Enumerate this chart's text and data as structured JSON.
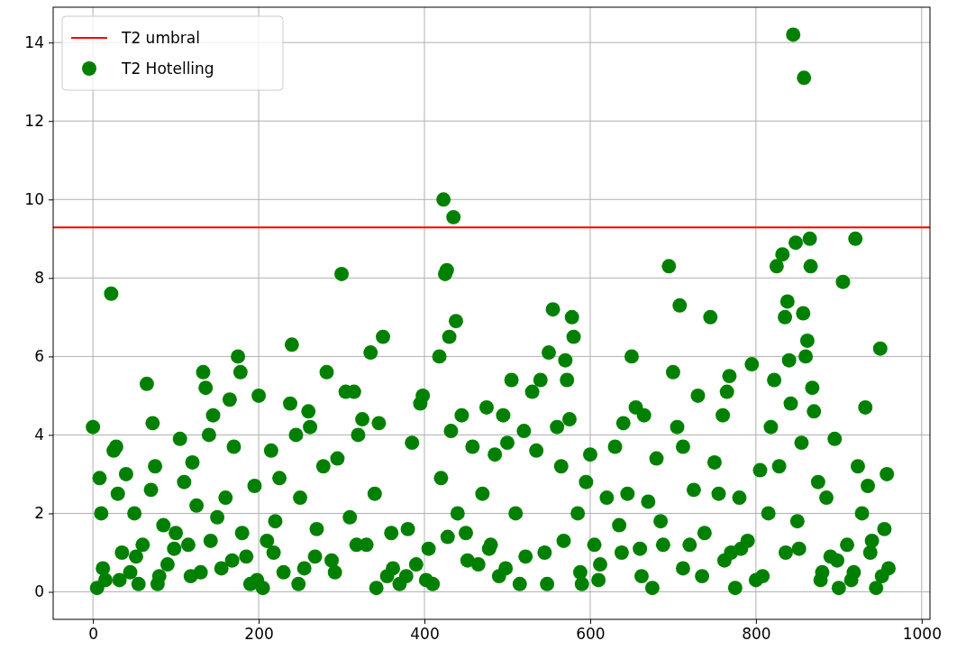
{
  "chart_data": {
    "type": "scatter",
    "xlim": [
      -48,
      1010
    ],
    "ylim": [
      -0.7,
      14.9
    ],
    "xticks": [
      0,
      200,
      400,
      600,
      800,
      1000
    ],
    "yticks": [
      0,
      2,
      4,
      6,
      8,
      10,
      12,
      14
    ],
    "grid": true,
    "legend": "top left",
    "series": [
      {
        "name": "T2 umbral",
        "type": "line",
        "color": "#ff0000",
        "x": [
          -48,
          1010
        ],
        "values": [
          9.29,
          9.29
        ]
      },
      {
        "name": "T2 Hotelling",
        "marker": "circle",
        "color": "#008000",
        "x": [
          0,
          5,
          8,
          10,
          15,
          22,
          25,
          28,
          30,
          35,
          40,
          45,
          50,
          55,
          60,
          65,
          70,
          72,
          75,
          80,
          85,
          90,
          100,
          105,
          110,
          115,
          120,
          125,
          130,
          133,
          136,
          140,
          145,
          150,
          155,
          160,
          165,
          170,
          175,
          178,
          180,
          185,
          190,
          195,
          200,
          205,
          210,
          215,
          220,
          225,
          230,
          238,
          240,
          245,
          250,
          255,
          260,
          262,
          270,
          278,
          282,
          288,
          295,
          300,
          305,
          310,
          315,
          320,
          325,
          330,
          335,
          340,
          345,
          350,
          355,
          360,
          370,
          380,
          385,
          390,
          395,
          398,
          405,
          410,
          418,
          420,
          423,
          425,
          427,
          430,
          432,
          435,
          438,
          440,
          445,
          450,
          458,
          465,
          470,
          475,
          480,
          485,
          490,
          495,
          500,
          505,
          510,
          515,
          520,
          530,
          535,
          540,
          545,
          550,
          555,
          560,
          565,
          570,
          572,
          575,
          578,
          580,
          585,
          590,
          595,
          600,
          605,
          610,
          620,
          630,
          635,
          640,
          645,
          650,
          655,
          660,
          665,
          670,
          675,
          680,
          685,
          695,
          700,
          705,
          708,
          712,
          720,
          725,
          730,
          735,
          745,
          750,
          755,
          760,
          765,
          768,
          770,
          775,
          780,
          790,
          795,
          800,
          805,
          815,
          818,
          822,
          825,
          828,
          832,
          835,
          838,
          840,
          842,
          845,
          848,
          850,
          852,
          855,
          857,
          858,
          860,
          862,
          865,
          866,
          868,
          870,
          875,
          880,
          885,
          890,
          895,
          900,
          905,
          910,
          915,
          920,
          923,
          928,
          932,
          935,
          940,
          945,
          950,
          955,
          958,
          960,
          12,
          32,
          52,
          78,
          98,
          118,
          142,
          168,
          198,
          218,
          248,
          268,
          292,
          318,
          342,
          362,
          378,
          402,
          428,
          452,
          478,
          498,
          522,
          548,
          568,
          588,
          612,
          638,
          662,
          688,
          712,
          738,
          762,
          782,
          808,
          836,
          878,
          898,
          918,
          938,
          952
        ],
        "values": [
          4.2,
          0.1,
          2.9,
          2.0,
          0.3,
          7.6,
          3.6,
          3.7,
          2.5,
          1.0,
          3.0,
          0.5,
          2.0,
          0.2,
          1.2,
          5.3,
          2.6,
          4.3,
          3.2,
          0.4,
          1.7,
          0.7,
          1.5,
          3.9,
          2.8,
          1.2,
          3.3,
          2.2,
          0.5,
          5.6,
          5.2,
          4.0,
          4.5,
          1.9,
          0.6,
          2.4,
          4.9,
          3.7,
          6.0,
          5.6,
          1.5,
          0.9,
          0.2,
          2.7,
          5.0,
          0.1,
          1.3,
          3.6,
          1.8,
          2.9,
          0.5,
          4.8,
          6.3,
          4.0,
          2.4,
          0.6,
          4.6,
          4.2,
          1.6,
          3.2,
          5.6,
          0.8,
          3.4,
          8.1,
          5.1,
          1.9,
          5.1,
          4.0,
          4.4,
          1.2,
          6.1,
          2.5,
          4.3,
          6.5,
          0.4,
          1.5,
          0.2,
          1.6,
          3.8,
          0.7,
          4.8,
          5.0,
          1.1,
          0.2,
          6.0,
          2.9,
          10.0,
          8.1,
          8.2,
          6.5,
          4.1,
          9.55,
          6.9,
          2.0,
          4.5,
          1.5,
          3.7,
          0.7,
          2.5,
          4.7,
          1.2,
          3.5,
          0.4,
          4.5,
          3.8,
          5.4,
          2.0,
          0.2,
          4.1,
          5.1,
          3.6,
          5.4,
          1.0,
          6.1,
          7.2,
          4.2,
          3.2,
          5.9,
          5.4,
          4.4,
          7.0,
          6.5,
          2.0,
          0.2,
          2.8,
          3.5,
          1.2,
          0.3,
          2.4,
          3.7,
          1.7,
          4.3,
          2.5,
          6.0,
          4.7,
          1.1,
          4.5,
          2.3,
          0.1,
          3.4,
          1.8,
          8.3,
          5.6,
          4.2,
          7.3,
          3.7,
          1.2,
          2.6,
          5.0,
          0.4,
          7.0,
          3.3,
          2.5,
          4.5,
          5.1,
          5.5,
          1.0,
          0.1,
          2.4,
          1.3,
          5.8,
          0.3,
          3.1,
          2.0,
          4.2,
          5.4,
          8.3,
          3.2,
          8.6,
          7.0,
          7.4,
          5.9,
          4.8,
          14.2,
          8.9,
          1.8,
          1.1,
          3.8,
          7.1,
          13.1,
          6.0,
          6.4,
          9.0,
          8.3,
          5.2,
          4.6,
          2.8,
          0.5,
          2.4,
          0.9,
          3.9,
          0.1,
          7.9,
          1.2,
          0.3,
          9.0,
          3.2,
          2.0,
          4.7,
          2.7,
          1.3,
          0.1,
          6.2,
          1.6,
          3.0,
          0.6,
          0.6,
          0.3,
          0.9,
          0.2,
          1.1,
          0.4,
          1.3,
          0.8,
          0.3,
          1.0,
          0.2,
          0.9,
          0.5,
          1.2,
          0.1,
          0.6,
          0.4,
          0.3,
          1.4,
          0.8,
          1.1,
          0.6,
          0.9,
          0.2,
          1.3,
          0.5,
          0.7,
          1.0,
          0.4,
          1.2,
          0.6,
          1.5,
          0.8,
          1.1,
          0.4,
          1.0,
          0.3,
          0.8,
          0.5,
          1.0,
          0.4
        ]
      }
    ]
  }
}
